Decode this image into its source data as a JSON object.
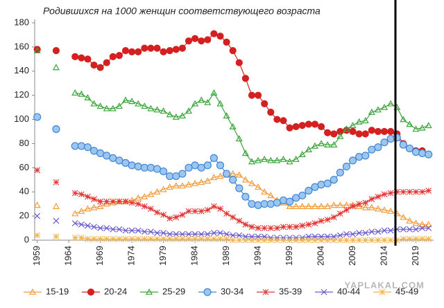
{
  "chart_data": {
    "type": "line",
    "title": "Родившихся на 1000 женщин соответствующего возраста",
    "watermark": "YAPLAKAL.COM",
    "x": [
      1959,
      1960,
      1962,
      1963,
      1965,
      1966,
      1967,
      1968,
      1969,
      1970,
      1971,
      1972,
      1973,
      1974,
      1975,
      1976,
      1977,
      1978,
      1979,
      1980,
      1981,
      1982,
      1983,
      1984,
      1985,
      1986,
      1987,
      1988,
      1989,
      1990,
      1991,
      1992,
      1993,
      1994,
      1995,
      1996,
      1997,
      1998,
      1999,
      2000,
      2001,
      2002,
      2003,
      2004,
      2005,
      2006,
      2007,
      2008,
      2009,
      2010,
      2011,
      2012,
      2013,
      2014,
      2015,
      2016,
      2017,
      2018,
      2019,
      2020,
      2021
    ],
    "xlim": [
      1958.6,
      2021.8
    ],
    "xticks": [
      1959,
      1964,
      1969,
      1974,
      1979,
      1984,
      1989,
      1994,
      1999,
      2004,
      2009,
      2014,
      2019
    ],
    "ylim": [
      0,
      180
    ],
    "yticks": [
      0,
      20,
      40,
      60,
      80,
      100,
      120,
      140,
      160,
      180
    ],
    "grid": false,
    "legend": "bottom",
    "series": [
      {
        "name": "15-19",
        "color": "#f39c3c",
        "marker": "triangle",
        "values": [
          29,
          null,
          28,
          null,
          22,
          24,
          26,
          27,
          28,
          30,
          31,
          32,
          32,
          33,
          35,
          36,
          38,
          40,
          42,
          44,
          45,
          45,
          46,
          47,
          48,
          49,
          52,
          53,
          54,
          55,
          54,
          50,
          47,
          44,
          40,
          37,
          33,
          31,
          28,
          28,
          28,
          28,
          28,
          28,
          28,
          29,
          29,
          29,
          29,
          28,
          27,
          27,
          26,
          25,
          24,
          22,
          19,
          16,
          14,
          13,
          13
        ]
      },
      {
        "name": "20-24",
        "color": "#d42020",
        "marker": "circle",
        "values": [
          158,
          null,
          157,
          null,
          152,
          151,
          150,
          145,
          143,
          147,
          152,
          153,
          157,
          156,
          156,
          159,
          159,
          159,
          156,
          157,
          158,
          159,
          165,
          167,
          165,
          166,
          171,
          169,
          164,
          157,
          147,
          134,
          120,
          120,
          113,
          106,
          100,
          99,
          93,
          94,
          95,
          96,
          96,
          94,
          89,
          88,
          90,
          91,
          90,
          88,
          88,
          91,
          90,
          90,
          90,
          88,
          80,
          76,
          74,
          74,
          71
        ]
      },
      {
        "name": "25-29",
        "color": "#3aa33a",
        "marker": "triangle",
        "values": [
          157,
          null,
          143,
          null,
          122,
          121,
          118,
          113,
          111,
          109,
          109,
          111,
          116,
          115,
          113,
          111,
          109,
          108,
          107,
          104,
          102,
          103,
          107,
          113,
          116,
          114,
          122,
          113,
          103,
          94,
          84,
          72,
          65,
          66,
          67,
          66,
          66,
          67,
          65,
          67,
          71,
          75,
          78,
          80,
          79,
          79,
          86,
          92,
          95,
          98,
          99,
          106,
          108,
          110,
          113,
          110,
          100,
          96,
          92,
          93,
          95
        ]
      },
      {
        "name": "30-34",
        "color": "#3f86d6",
        "marker": "circle",
        "values": [
          102,
          null,
          92,
          null,
          78,
          78,
          77,
          74,
          72,
          70,
          68,
          66,
          64,
          62,
          61,
          60,
          60,
          59,
          57,
          53,
          53,
          55,
          60,
          62,
          60,
          62,
          68,
          62,
          55,
          50,
          43,
          36,
          30,
          29,
          30,
          30,
          31,
          33,
          32,
          35,
          37,
          41,
          44,
          46,
          47,
          50,
          56,
          61,
          66,
          69,
          70,
          75,
          77,
          81,
          84,
          85,
          79,
          76,
          73,
          72,
          71
        ]
      },
      {
        "name": "35-39",
        "color": "#e23434",
        "marker": "star",
        "values": [
          58,
          null,
          48,
          null,
          39,
          38,
          36,
          34,
          32,
          32,
          32,
          32,
          32,
          31,
          30,
          28,
          26,
          23,
          21,
          18,
          19,
          21,
          24,
          24,
          24,
          25,
          28,
          26,
          22,
          19,
          16,
          13,
          11,
          10,
          10,
          10,
          10,
          11,
          11,
          11,
          12,
          13,
          14,
          16,
          17,
          19,
          22,
          25,
          28,
          30,
          31,
          34,
          36,
          38,
          39,
          40,
          40,
          40,
          40,
          40,
          41
        ]
      },
      {
        "name": "40-44",
        "color": "#6a5acd",
        "marker": "x",
        "values": [
          20,
          null,
          16,
          null,
          14,
          13,
          12,
          11,
          10,
          10,
          9,
          9,
          8,
          8,
          8,
          7,
          7,
          6,
          6,
          5,
          5,
          5,
          5,
          5,
          5,
          5,
          6,
          6,
          5,
          4,
          4,
          3,
          3,
          3,
          3,
          2,
          2,
          2,
          2,
          2,
          2,
          3,
          3,
          3,
          3,
          3,
          4,
          5,
          5,
          6,
          6,
          7,
          7,
          8,
          8,
          9,
          9,
          9,
          9,
          10,
          10
        ]
      },
      {
        "name": "45-49",
        "color": "#f2b24a",
        "marker": "star",
        "values": [
          4,
          null,
          3,
          null,
          2,
          2,
          1,
          1,
          1,
          1,
          1,
          1,
          1,
          1,
          1,
          1,
          1,
          1,
          1,
          1,
          1,
          1,
          1,
          1,
          1,
          1,
          1,
          1,
          1,
          0,
          0,
          0,
          0,
          0,
          0,
          0,
          0,
          0,
          0,
          0,
          0,
          0,
          0,
          0,
          0,
          0,
          0,
          0,
          0,
          0,
          0,
          0,
          0,
          0,
          0,
          0,
          1,
          1,
          1,
          1,
          1
        ]
      }
    ]
  }
}
